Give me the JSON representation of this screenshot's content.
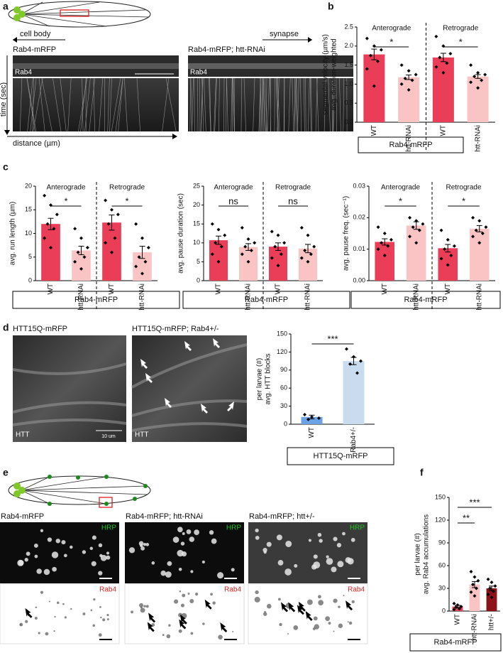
{
  "chart_data": [
    {
      "type": "bar",
      "ylabel": [
        "avg. duration-weighted",
        "segmental velocity (µm/s)"
      ],
      "group_labels": [
        "Anterograde",
        "Retrograde"
      ],
      "categories": [
        "WT",
        "htt-RNAi",
        "WT",
        "htt-RNAi"
      ],
      "values": [
        1.78,
        1.18,
        1.7,
        1.2
      ],
      "errors": [
        0.14,
        0.06,
        0.11,
        0.05
      ],
      "points": [
        [
          2.2,
          2.0,
          1.9,
          1.75,
          1.6,
          1.4,
          0.95
        ],
        [
          1.5,
          1.35,
          1.25,
          1.15,
          1.1,
          1.0,
          0.85
        ],
        [
          2.25,
          2.0,
          1.8,
          1.7,
          1.55,
          1.45,
          1.3
        ],
        [
          1.5,
          1.3,
          1.25,
          1.2,
          1.1,
          1.05,
          0.9
        ]
      ],
      "colors": [
        "#ea3d57",
        "#fbc4c4",
        "#ea3d57",
        "#fbc4c4"
      ],
      "ylim": [
        0,
        2.5
      ],
      "yticks": [
        {
          "value": 0,
          "label": "0.0"
        },
        0.5,
        {
          "value": 1,
          "label": "1.0"
        },
        1.5,
        {
          "value": 2,
          "label": "2.0"
        },
        2.5
      ],
      "significance": [
        "*",
        "*"
      ],
      "box_label": "Rab4-mRFP"
    },
    {
      "type": "bar",
      "ylabel": [
        "avg. run length (µm)"
      ],
      "group_labels": [
        "Anterograde",
        "Retrograde"
      ],
      "categories": [
        "WT",
        "htt-RNAi",
        "WT",
        "htt-RNAi"
      ],
      "values": [
        12.0,
        6.4,
        12.3,
        6.0
      ],
      "errors": [
        1.2,
        0.9,
        1.6,
        1.3
      ],
      "points": [
        [
          18,
          16,
          14,
          12,
          11,
          9,
          7
        ],
        [
          11,
          9,
          7,
          6,
          5,
          4,
          2.5
        ],
        [
          17,
          15,
          14,
          12,
          9,
          8,
          6
        ],
        [
          12,
          9,
          7,
          5,
          4,
          3,
          1.5
        ]
      ],
      "colors": [
        "#ea3d57",
        "#fbc4c4",
        "#ea3d57",
        "#fbc4c4"
      ],
      "ylim": [
        0,
        20
      ],
      "yticks": [
        0,
        5,
        10,
        15,
        20
      ],
      "significance": [
        "*",
        "*"
      ],
      "box_label": "Rab4-mRFP"
    },
    {
      "type": "bar",
      "ylabel": [
        "avg. pause duration (sec)"
      ],
      "group_labels": [
        "Anterograde",
        "Retrograde"
      ],
      "categories": [
        "WT",
        "htt-RNAi",
        "WT",
        "htt-RNAi"
      ],
      "values": [
        10.7,
        8.9,
        9.0,
        8.5
      ],
      "errors": [
        1.1,
        0.9,
        1.0,
        1.1
      ],
      "points": [
        [
          15,
          13.5,
          12,
          10,
          9,
          7,
          5
        ],
        [
          14,
          11,
          10,
          9,
          8,
          7,
          5
        ],
        [
          13,
          12,
          10,
          9,
          7,
          6,
          4
        ],
        [
          14,
          12,
          9,
          8,
          7,
          6,
          5
        ]
      ],
      "colors": [
        "#ea3d57",
        "#fbc4c4",
        "#ea3d57",
        "#fbc4c4"
      ],
      "ylim": [
        0,
        25
      ],
      "yticks": [
        0,
        5,
        10,
        15,
        20,
        25
      ],
      "significance": [
        "ns",
        "ns"
      ],
      "box_label": "Rab4-mRFP"
    },
    {
      "type": "bar",
      "ylabel": [
        "avg. pause freq. (sec⁻¹)"
      ],
      "group_labels": [
        "Anterograde",
        "Retrograde"
      ],
      "categories": [
        "WT",
        "htt-RNAi",
        "WT",
        "htt-RNAi"
      ],
      "values": [
        0.0123,
        0.0175,
        0.0103,
        0.0165
      ],
      "errors": [
        0.001,
        0.0012,
        0.0012,
        0.001
      ],
      "points": [
        [
          0.017,
          0.015,
          0.013,
          0.012,
          0.011,
          0.01,
          0.008
        ],
        [
          0.02,
          0.019,
          0.018,
          0.017,
          0.016,
          0.014,
          0.012
        ],
        [
          0.016,
          0.013,
          0.011,
          0.01,
          0.008,
          0.007,
          0.005
        ],
        [
          0.02,
          0.019,
          0.017,
          0.016,
          0.015,
          0.014,
          0.012
        ]
      ],
      "colors": [
        "#ea3d57",
        "#fbc4c4",
        "#ea3d57",
        "#fbc4c4"
      ],
      "ylim": [
        0,
        0.03
      ],
      "yticks": [
        {
          "value": 0,
          "label": "0.00"
        },
        {
          "value": 0.01,
          "label": "0.01"
        },
        {
          "value": 0.02,
          "label": "0.02"
        },
        {
          "value": 0.03,
          "label": "0.03"
        }
      ],
      "significance": [
        "*",
        "*"
      ],
      "box_label": "Rab4-mRFP"
    },
    {
      "type": "bar",
      "ylabel": [
        "avg. HTT blocks",
        "per larvae (#)"
      ],
      "categories": [
        "WT",
        "Rab4+/-"
      ],
      "values": [
        12,
        105
      ],
      "errors": [
        3,
        6
      ],
      "points": [
        [
          16,
          12,
          10,
          8
        ],
        [
          125,
          112,
          105,
          100,
          85
        ]
      ],
      "colors": [
        "#6aa2e3",
        "#c9dcef"
      ],
      "ylim": [
        0,
        150
      ],
      "yticks": [
        0,
        30,
        60,
        90,
        120,
        150
      ],
      "significance": [
        "***"
      ],
      "box_label": "HTT15Q-mRFP"
    },
    {
      "type": "bar",
      "ylabel": [
        "avg. Rab4 accumulations",
        "per larvae (#)"
      ],
      "categories": [
        "WT",
        "htt-RNAi",
        "htt+/-"
      ],
      "values": [
        6,
        35,
        30
      ],
      "errors": [
        1.5,
        4,
        3
      ],
      "points": [
        [
          10,
          8,
          6,
          5,
          3,
          2
        ],
        [
          52,
          45,
          40,
          35,
          30,
          25,
          20
        ],
        [
          42,
          38,
          33,
          30,
          26,
          22,
          18
        ]
      ],
      "colors": [
        "#ea3d57",
        "#fbc4c4",
        "#8c1118"
      ],
      "ylim": [
        0,
        150
      ],
      "yticks": [
        0,
        30,
        60,
        90,
        120,
        150
      ],
      "significance": [
        "**",
        "***"
      ],
      "box_label": "Rab4-mRFP"
    }
  ],
  "panels": {
    "letters": [
      "a",
      "b",
      "c",
      "d",
      "e",
      "f"
    ],
    "a": {
      "left_direction": "cell body",
      "right_direction": "synapse",
      "left_title": "Rab4-mRFP",
      "right_title": "Rab4-mRFP; htt-RNAi",
      "left_stain": "Rab4",
      "right_stain": "Rab4",
      "y_axis": "time (sec)",
      "x_axis": "distance (µm)"
    },
    "d": {
      "left_title": "HTT15Q-mRFP",
      "right_title": "HTT15Q-mRFP; Rab4+/-",
      "left_stain": "HTT",
      "right_stain": "HTT",
      "scale": "10 um"
    },
    "e": {
      "titles": [
        "Rab4-mRFP",
        "Rab4-mRFP; htt-RNAi",
        "Rab4-mRFP; htt+/-"
      ],
      "top_stain": [
        "HRP",
        "HRP",
        "HRP"
      ],
      "bottom_stain": [
        "Rab4",
        "Rab4",
        "Rab4"
      ]
    }
  }
}
